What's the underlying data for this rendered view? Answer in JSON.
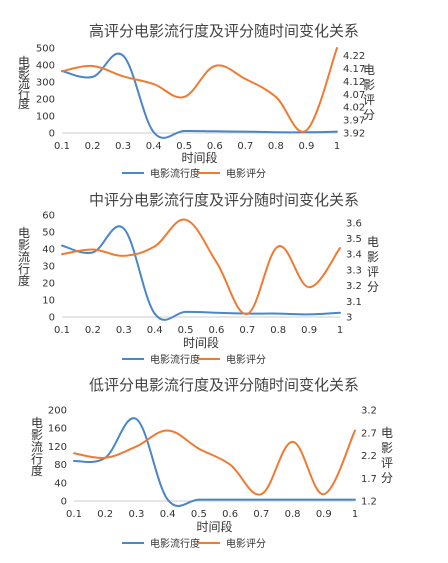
{
  "colors": {
    "popularity": "#4a86c8",
    "rating": "#ef7b32",
    "axis": "#cccccc"
  },
  "chart_data": [
    {
      "type": "line",
      "title": "高评分电影流行度及评分随时间变化关系",
      "xlabel": "时间段",
      "ylabel_left": "电影流行度",
      "ylabel_right": "电影评分",
      "x_ticks": [
        "0.1",
        "0.2",
        "0.3",
        "0.4",
        "0.5",
        "0.6",
        "0.7",
        "0.8",
        "0.9",
        "1"
      ],
      "y_left_ticks": [
        "0",
        "100",
        "200",
        "300",
        "400",
        "500"
      ],
      "y_right_ticks": [
        "3.92",
        "3.97",
        "4.02",
        "4.07",
        "4.12",
        "4.17",
        "4.22"
      ],
      "y_left_range": [
        0,
        500
      ],
      "y_right_range": [
        3.92,
        4.25
      ],
      "series": [
        {
          "name": "电影流行度",
          "axis": "left",
          "x": [
            0.1,
            0.2,
            0.3,
            0.4,
            0.5,
            0.6,
            0.7,
            0.8,
            0.9,
            1.0
          ],
          "values": [
            365,
            330,
            455,
            5,
            12,
            10,
            8,
            5,
            4,
            8
          ]
        },
        {
          "name": "电影评分",
          "axis": "right",
          "x": [
            0.1,
            0.2,
            0.3,
            0.4,
            0.5,
            0.6,
            0.7,
            0.8,
            0.9,
            1.0
          ],
          "values": [
            4.16,
            4.18,
            4.14,
            4.11,
            4.06,
            4.18,
            4.13,
            4.06,
            3.93,
            4.25
          ]
        }
      ]
    },
    {
      "type": "line",
      "title": "中评分电影流行度及评分随时间变化关系",
      "xlabel": "时间段",
      "ylabel_left": "电影流行度",
      "ylabel_right": "电影评分",
      "x_ticks": [
        "0.1",
        "0.2",
        "0.3",
        "0.4",
        "0.5",
        "0.6",
        "0.7",
        "0.8",
        "0.9",
        "1"
      ],
      "y_left_ticks": [
        "0",
        "10",
        "20",
        "30",
        "40",
        "50",
        "60"
      ],
      "y_right_ticks": [
        "3",
        "3.1",
        "3.2",
        "3.3",
        "3.4",
        "3.5",
        "3.6"
      ],
      "y_left_range": [
        0,
        60
      ],
      "y_right_range": [
        3.0,
        3.65
      ],
      "series": [
        {
          "name": "电影流行度",
          "axis": "left",
          "x": [
            0.1,
            0.2,
            0.3,
            0.4,
            0.5,
            0.6,
            0.7,
            0.8,
            0.9,
            1.0
          ],
          "values": [
            42,
            38,
            52,
            2,
            3,
            2.5,
            2,
            2,
            1.5,
            2.5
          ]
        },
        {
          "name": "电影评分",
          "axis": "right",
          "x": [
            0.1,
            0.2,
            0.3,
            0.4,
            0.5,
            0.6,
            0.7,
            0.8,
            0.9,
            1.0
          ],
          "values": [
            3.4,
            3.43,
            3.39,
            3.45,
            3.62,
            3.35,
            3.02,
            3.45,
            3.19,
            3.44
          ]
        }
      ]
    },
    {
      "type": "line",
      "title": "低评分电影流行度及评分随时间变化关系",
      "xlabel": "时间段",
      "ylabel_left": "电影流行度",
      "ylabel_right": "电影评分",
      "x_ticks": [
        "0.1",
        "0.2",
        "0.3",
        "0.4",
        "0.5",
        "0.6",
        "0.7",
        "0.8",
        "0.9",
        "1"
      ],
      "y_left_ticks": [
        "0",
        "40",
        "80",
        "120",
        "160",
        "200"
      ],
      "y_right_ticks": [
        "1.2",
        "1.7",
        "2.2",
        "2.7",
        "3.2"
      ],
      "y_left_range": [
        0,
        200
      ],
      "y_right_range": [
        1.2,
        3.2
      ],
      "series": [
        {
          "name": "电影流行度",
          "axis": "left",
          "x": [
            0.1,
            0.2,
            0.3,
            0.4,
            0.5,
            0.6,
            0.7,
            0.8,
            0.9,
            1.0
          ],
          "values": [
            88,
            95,
            180,
            3,
            3,
            3,
            3,
            3,
            3,
            3
          ]
        },
        {
          "name": "电影评分",
          "axis": "right",
          "x": [
            0.1,
            0.2,
            0.3,
            0.4,
            0.5,
            0.6,
            0.7,
            0.8,
            0.9,
            1.0
          ],
          "values": [
            2.25,
            2.15,
            2.4,
            2.75,
            2.35,
            2.0,
            1.35,
            2.5,
            1.35,
            2.75
          ]
        }
      ]
    }
  ]
}
